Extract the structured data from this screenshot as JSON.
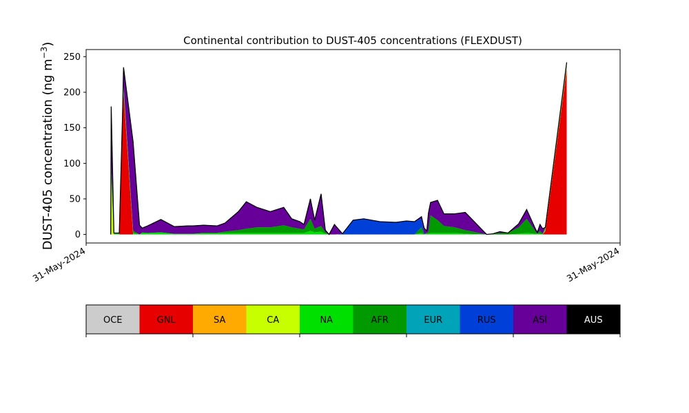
{
  "chart_data": {
    "type": "area",
    "stacked": true,
    "title": "Continental contribution to DUST-405 concentrations (FLEXDUST)",
    "ylabel_main": "DUST-405 concentration (ng m",
    "ylabel_sup": "−3",
    "ylabel_end": ")",
    "ylim": [
      -12,
      260
    ],
    "yticks": [
      0,
      50,
      100,
      150,
      200,
      250
    ],
    "xlim": [
      0,
      1
    ],
    "xtick_labels": [
      "31-May-2024",
      "31-May-2024"
    ],
    "grid": false,
    "x": [
      0.046,
      0.047,
      0.052,
      0.056,
      0.062,
      0.068,
      0.07,
      0.088,
      0.1,
      0.105,
      0.115,
      0.14,
      0.165,
      0.19,
      0.2,
      0.22,
      0.245,
      0.26,
      0.285,
      0.3,
      0.32,
      0.345,
      0.37,
      0.385,
      0.4,
      0.408,
      0.42,
      0.428,
      0.44,
      0.448,
      0.455,
      0.465,
      0.48,
      0.5,
      0.52,
      0.55,
      0.58,
      0.6,
      0.615,
      0.628,
      0.633,
      0.638,
      0.641,
      0.645,
      0.658,
      0.67,
      0.69,
      0.71,
      0.75,
      0.762,
      0.775,
      0.79,
      0.81,
      0.825,
      0.842,
      0.845,
      0.85,
      0.855,
      0.86,
      0.9
    ],
    "series": [
      {
        "name": "OCE",
        "color": "#cccccc",
        "values": [
          0,
          0,
          0,
          0,
          0,
          0,
          0,
          0,
          0,
          0,
          0,
          0,
          0,
          0,
          0,
          0,
          0,
          0,
          0,
          0,
          0,
          0,
          0,
          0,
          0,
          0,
          0,
          0,
          0,
          0,
          0,
          0,
          0,
          0,
          0,
          0,
          0,
          0,
          0,
          0,
          0,
          0,
          0,
          0,
          0,
          0,
          0,
          0,
          0,
          0,
          0,
          0,
          0,
          0,
          0,
          0,
          0,
          0,
          0,
          0
        ]
      },
      {
        "name": "GNL",
        "color": "#e60000",
        "values": [
          0,
          0,
          0,
          0,
          0,
          150,
          200,
          0,
          0,
          0,
          0,
          0,
          0,
          0,
          0,
          0,
          0,
          0,
          0,
          0,
          0,
          0,
          0,
          0,
          0,
          0,
          0,
          0,
          0,
          0,
          0,
          0,
          0,
          0,
          0,
          0,
          0,
          0,
          0,
          0,
          0,
          0,
          0,
          0,
          0,
          0,
          0,
          0,
          0,
          0,
          0,
          0,
          0,
          0,
          0,
          0,
          0,
          0,
          5,
          233
        ]
      },
      {
        "name": "SA",
        "color": "#ffaa00",
        "values": [
          0,
          0,
          0,
          0,
          0,
          0,
          0,
          0,
          0,
          0,
          0,
          0,
          0,
          0,
          0,
          0,
          0,
          0,
          0,
          0,
          0,
          0,
          0,
          0,
          0,
          0,
          0,
          0,
          0,
          0,
          0,
          0,
          0,
          0,
          0,
          0,
          0,
          0,
          0,
          0,
          0,
          0,
          0,
          0,
          0,
          0,
          0,
          0,
          0,
          0,
          0,
          0,
          0,
          0,
          0,
          0,
          0,
          0,
          0,
          0
        ]
      },
      {
        "name": "CA",
        "color": "#c8ff00",
        "values": [
          0,
          80,
          0,
          0,
          0,
          0,
          0,
          0,
          0,
          0,
          0,
          0,
          0,
          0,
          0,
          0,
          0,
          0,
          0,
          0,
          0,
          0,
          0,
          0,
          0,
          0,
          0,
          0,
          0,
          0,
          0,
          0,
          0,
          0,
          0,
          0,
          0,
          0,
          0,
          0,
          0,
          0,
          0,
          0,
          0,
          0,
          0,
          0,
          0,
          0,
          0,
          0,
          0,
          0,
          0,
          0,
          0,
          0,
          1,
          3
        ]
      },
      {
        "name": "NA",
        "color": "#00e000",
        "values": [
          0,
          10,
          1,
          1,
          1,
          0,
          5,
          2,
          0,
          2,
          2,
          3,
          1,
          1,
          1,
          2,
          2,
          2,
          2,
          2,
          2,
          2,
          2,
          2,
          2,
          2,
          5,
          3,
          4,
          1,
          0,
          0,
          0,
          0,
          0,
          0,
          0,
          0,
          0,
          2,
          0,
          1,
          1,
          2,
          2,
          2,
          2,
          1,
          0,
          0,
          0,
          0,
          1,
          2,
          1,
          1,
          1,
          0,
          2,
          3
        ]
      },
      {
        "name": "AFR",
        "color": "#009900",
        "values": [
          0,
          10,
          1,
          1,
          1,
          3,
          5,
          3,
          0,
          1,
          0,
          0,
          0,
          0,
          0,
          0,
          0,
          2,
          4,
          6,
          8,
          8,
          11,
          8,
          6,
          5,
          17,
          5,
          8,
          2,
          0,
          0,
          0,
          0,
          0,
          0,
          0,
          0,
          0,
          8,
          0,
          1,
          3,
          25,
          18,
          10,
          8,
          5,
          0,
          1,
          2,
          2,
          9,
          20,
          3,
          0,
          4,
          1,
          2,
          3
        ]
      },
      {
        "name": "EUR",
        "color": "#00a3b8",
        "values": [
          0,
          0,
          0,
          0,
          0,
          0,
          0,
          0,
          0,
          0,
          0,
          0,
          0,
          0,
          0,
          0,
          0,
          0,
          0,
          0,
          0,
          0,
          0,
          0,
          0,
          0,
          0,
          0,
          0,
          0,
          0,
          0,
          0,
          0,
          0,
          0,
          0,
          0,
          0,
          0,
          0,
          0,
          0,
          0,
          0,
          0,
          0,
          0,
          0,
          0,
          0,
          0,
          0,
          0,
          0,
          0,
          0,
          0,
          0,
          0
        ]
      },
      {
        "name": "RUS",
        "color": "#0040d8",
        "values": [
          0,
          0,
          0,
          0,
          0,
          0,
          0,
          0,
          0,
          0,
          0,
          0,
          0,
          0,
          0,
          0,
          0,
          0,
          0,
          0,
          0,
          0,
          0,
          0,
          0,
          0,
          0,
          0,
          0,
          0,
          0,
          0,
          1,
          20,
          22,
          18,
          17,
          19,
          18,
          12,
          1,
          0,
          0,
          0,
          0,
          0,
          0,
          0,
          0,
          0,
          0,
          0,
          0,
          0,
          0,
          0,
          0,
          0,
          0,
          0
        ]
      },
      {
        "name": "ASI",
        "color": "#660099",
        "values": [
          0,
          78,
          0,
          0,
          0,
          10,
          25,
          125,
          13,
          6,
          10,
          18,
          10,
          11,
          11,
          11,
          10,
          12,
          26,
          38,
          28,
          22,
          25,
          12,
          10,
          7,
          28,
          12,
          45,
          3,
          0,
          14,
          0,
          0,
          0,
          0,
          0,
          0,
          0,
          3,
          8,
          3,
          26,
          18,
          28,
          17,
          19,
          25,
          0,
          0,
          2,
          0,
          5,
          13,
          3,
          2,
          9,
          7,
          0,
          0
        ]
      },
      {
        "name": "AUS",
        "color": "#000000",
        "values": [
          0,
          2,
          0,
          0,
          0,
          0,
          0,
          0,
          0,
          0,
          0,
          0,
          0,
          0,
          0,
          0,
          0,
          0,
          0,
          0,
          0,
          0,
          0,
          0,
          0,
          0,
          0,
          0,
          0,
          0,
          0,
          0,
          0,
          0,
          0,
          0,
          0,
          0,
          0,
          0,
          0,
          0,
          0,
          0,
          0,
          0,
          0,
          0,
          0,
          0,
          0,
          0,
          0,
          0,
          0,
          0,
          0,
          0,
          0,
          0
        ]
      }
    ],
    "colorbar": {
      "labels": [
        "OCE",
        "GNL",
        "SA",
        "CA",
        "NA",
        "AFR",
        "EUR",
        "RUS",
        "ASI",
        "AUS"
      ],
      "colors": [
        "#cccccc",
        "#e60000",
        "#ffaa00",
        "#c8ff00",
        "#00e000",
        "#009900",
        "#00a3b8",
        "#0040d8",
        "#660099",
        "#000000"
      ],
      "text_colors": [
        "#000000",
        "#000000",
        "#000000",
        "#000000",
        "#000000",
        "#000000",
        "#000000",
        "#000000",
        "#000000",
        "#ffffff"
      ]
    }
  }
}
